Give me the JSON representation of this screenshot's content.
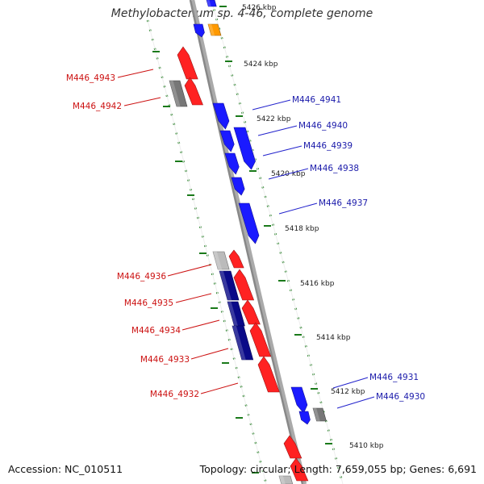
{
  "title": "Methylobacterium sp. 4-46, complete genome",
  "footer": {
    "accession": "Accession: NC_010511",
    "topology": "Topology: circular; Length: 7,659,055 bp; Genes: 6,691"
  },
  "ticks": [
    "5426 kbp",
    "5424 kbp",
    "5422 kbp",
    "5420 kbp",
    "5418 kbp",
    "5416 kbp",
    "5414 kbp",
    "5412 kbp",
    "5410 kbp"
  ],
  "gene_labels": {
    "forward": [
      "M446_4941",
      "M446_4940",
      "M446_4939",
      "M446_4938",
      "M446_4937",
      "M446_4931",
      "M446_4930"
    ],
    "reverse": [
      "M446_4943",
      "M446_4942",
      "M446_4936",
      "M446_4935",
      "M446_4934",
      "M446_4933",
      "M446_4932"
    ]
  },
  "colors": {
    "forward_gene": "#1a1aff",
    "forward_operon": "#0a0a88",
    "reverse_gene": "#ff2222",
    "pseudo_gene": "#777777",
    "rna_gene": "#ff9900",
    "tick_mark": "#1a7a1a",
    "backbone": "#888888"
  }
}
